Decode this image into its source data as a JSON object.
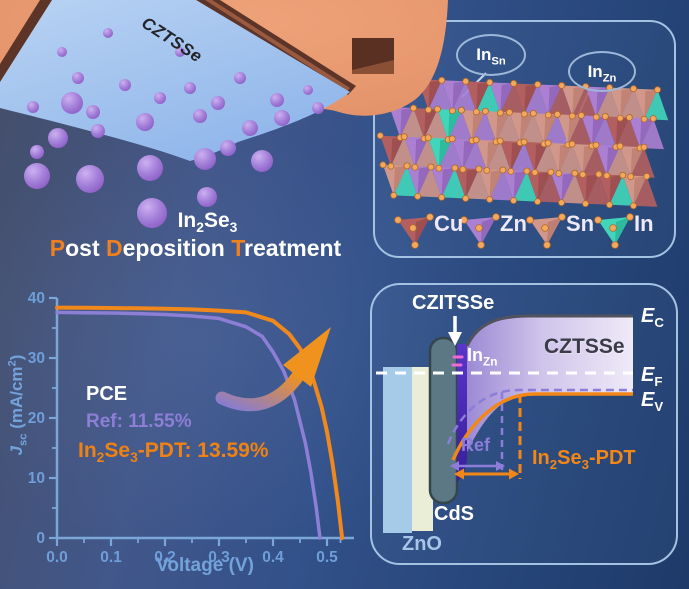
{
  "colors": {
    "orange": "#ef8717",
    "orange_letter": "#ef8020",
    "purple": "#8b7dd8",
    "light_blue": "#79a5da",
    "tick_text": "#6f9ed8",
    "panel_border": "#a4c2e2",
    "band_text": "#3b3b49",
    "zno_text": "#a8c4e6",
    "pink": "#ee6ad6",
    "dot": "#f4a85e"
  },
  "top_left": {
    "film_label": "CZTSSe",
    "caption_line1": [
      {
        "t": "In"
      },
      {
        "t": "2",
        "sub": 1
      },
      {
        "t": "Se"
      },
      {
        "t": "3",
        "sub": 1
      }
    ],
    "caption_line2": [
      {
        "t": "P",
        "c": "#ef8020"
      },
      {
        "t": "ost "
      },
      {
        "t": "D",
        "c": "#ef8020"
      },
      {
        "t": "eposition "
      },
      {
        "t": "T",
        "c": "#ef8020"
      },
      {
        "t": "reatment"
      }
    ]
  },
  "crystal_panel": {
    "callout1": [
      {
        "t": "In"
      },
      {
        "t": "Sn",
        "sub": 1
      }
    ],
    "callout2": [
      {
        "t": "In"
      },
      {
        "t": "Zn",
        "sub": 1
      }
    ],
    "legend": [
      {
        "label": "Cu",
        "color": "#b35f5f",
        "dark": "#8c4246"
      },
      {
        "label": "Zn",
        "color": "#ab7fd2",
        "dark": "#8158ab"
      },
      {
        "label": "Sn",
        "color": "#d2978b",
        "dark": "#b07265"
      },
      {
        "label": "In",
        "color": "#41d6ba",
        "dark": "#1fa78c"
      }
    ],
    "lattice": {
      "rows": [
        {
          "x": 55,
          "y": 84
        },
        {
          "x": 28,
          "y": 113
        },
        {
          "x": 20,
          "y": 142
        },
        {
          "x": 24,
          "y": 171
        }
      ],
      "endX": 307,
      "triW": 24,
      "triH": 30,
      "dotColor": "#f4a85e",
      "dotEdge": "#b06a28",
      "mix": [
        "Cu",
        "Sn",
        "Cu",
        "Zn",
        "Sn",
        "Cu",
        "Zn",
        "Sn",
        "In",
        "Zn"
      ]
    }
  },
  "chart_data": {
    "type": "line",
    "xlabel": "Voltage (V)",
    "ylabel_rich": [
      {
        "t": "J",
        "i": 1
      },
      {
        "t": "sc",
        "sub": 1
      },
      {
        "t": " (mA/cm"
      },
      {
        "t": "2",
        "sup": 1
      },
      {
        "t": ")"
      }
    ],
    "xlim": [
      0,
      0.55
    ],
    "ylim": [
      0,
      40
    ],
    "xticks": [
      {
        "v": 0.0,
        "l": "0.0"
      },
      {
        "v": 0.1,
        "l": "0.1"
      },
      {
        "v": 0.2,
        "l": "0.2"
      },
      {
        "v": 0.3,
        "l": "0.3"
      },
      {
        "v": 0.4,
        "l": "0.4"
      },
      {
        "v": 0.5,
        "l": "0.5"
      }
    ],
    "yticks": [
      {
        "v": 0,
        "l": "0"
      },
      {
        "v": 10,
        "l": "10"
      },
      {
        "v": 20,
        "l": "20"
      },
      {
        "v": 30,
        "l": "30"
      },
      {
        "v": 40,
        "l": "40"
      }
    ],
    "minor_x": [
      0.05,
      0.15,
      0.25,
      0.35,
      0.45,
      0.525
    ],
    "minor_y": [
      5,
      15,
      25,
      35
    ],
    "grid": false,
    "series": [
      {
        "name": "Ref",
        "color": "#8d7ed6",
        "pce": "11.55%",
        "x": [
          0,
          0.05,
          0.1,
          0.15,
          0.2,
          0.25,
          0.3,
          0.35,
          0.38,
          0.4,
          0.42,
          0.44,
          0.46,
          0.47,
          0.48,
          0.487
        ],
        "y": [
          37.6,
          37.55,
          37.5,
          37.4,
          37.25,
          37.0,
          36.6,
          35.2,
          33.6,
          31.0,
          27.8,
          23.0,
          15.8,
          11.0,
          5.1,
          0
        ]
      },
      {
        "name": "In2Se3-PDT",
        "color": "#f0881c",
        "pce": "13.59%",
        "x": [
          0,
          0.05,
          0.1,
          0.15,
          0.2,
          0.25,
          0.3,
          0.35,
          0.4,
          0.43,
          0.45,
          0.47,
          0.49,
          0.5,
          0.51,
          0.52,
          0.528
        ],
        "y": [
          38.4,
          38.37,
          38.33,
          38.28,
          38.2,
          38.1,
          37.9,
          37.6,
          36.2,
          34.0,
          31.6,
          27.8,
          21.8,
          17.7,
          12.5,
          6.2,
          0
        ]
      }
    ],
    "annotations": {
      "heading": "PCE",
      "ref_line": [
        {
          "t": "Ref: 11.55%"
        }
      ],
      "pdt_line": [
        {
          "t": "In"
        },
        {
          "t": "2",
          "sub": 1
        },
        {
          "t": "Se"
        },
        {
          "t": "3",
          "sub": 1
        },
        {
          "t": "-PDT: 13.59%"
        }
      ]
    }
  },
  "band_panel": {
    "layer_label": "CZITSSe",
    "defect_label": [
      {
        "t": "In"
      },
      {
        "t": "Zn",
        "sub": 1
      }
    ],
    "bulk_label": "CZTSSe",
    "ec": [
      {
        "t": "E",
        "i": 1
      },
      {
        "t": "C",
        "sub": 1
      }
    ],
    "ef": [
      {
        "t": "E",
        "i": 1
      },
      {
        "t": "F",
        "sub": 1
      }
    ],
    "ev": [
      {
        "t": "E",
        "i": 1
      },
      {
        "t": "V",
        "sub": 1
      }
    ],
    "ref_label": "Ref",
    "pdt_label": [
      {
        "t": "In"
      },
      {
        "t": "2",
        "sub": 1
      },
      {
        "t": "Se"
      },
      {
        "t": "3",
        "sub": 1
      },
      {
        "t": "-PDT"
      }
    ],
    "cds_label": "CdS",
    "zno_label": "ZnO"
  }
}
